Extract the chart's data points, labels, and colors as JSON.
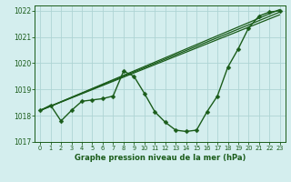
{
  "title": "Graphe pression niveau de la mer (hPa)",
  "bg_color": "#d4eeee",
  "grid_color": "#aed4d4",
  "line_color": "#1a5c1a",
  "xlim": [
    -0.5,
    23.5
  ],
  "ylim": [
    1017.0,
    1022.2
  ],
  "xticks": [
    0,
    1,
    2,
    3,
    4,
    5,
    6,
    7,
    8,
    9,
    10,
    11,
    12,
    13,
    14,
    15,
    16,
    17,
    18,
    19,
    20,
    21,
    22,
    23
  ],
  "yticks": [
    1017,
    1018,
    1019,
    1020,
    1021,
    1022
  ],
  "main_x": [
    0,
    1,
    2,
    3,
    4,
    5,
    6,
    7,
    8,
    9,
    10,
    11,
    12,
    13,
    14,
    15,
    16,
    17,
    18,
    19,
    20,
    21,
    22,
    23
  ],
  "main_y": [
    1018.2,
    1018.4,
    1017.8,
    1018.2,
    1018.55,
    1018.6,
    1018.65,
    1018.75,
    1019.7,
    1019.5,
    1018.85,
    1018.15,
    1017.75,
    1017.45,
    1017.4,
    1017.45,
    1018.15,
    1018.75,
    1019.85,
    1020.55,
    1021.35,
    1021.8,
    1021.95,
    1022.0
  ],
  "trend_lines": [
    {
      "x0": 0,
      "y0": 1018.2,
      "x1": 23,
      "y1": 1022.05
    },
    {
      "x0": 0,
      "y0": 1018.2,
      "x1": 23,
      "y1": 1021.95
    },
    {
      "x0": 0,
      "y0": 1018.2,
      "x1": 23,
      "y1": 1021.85
    }
  ],
  "marker": "D",
  "markersize": 2.5,
  "linewidth": 1.0,
  "trend_linewidth": 0.9
}
